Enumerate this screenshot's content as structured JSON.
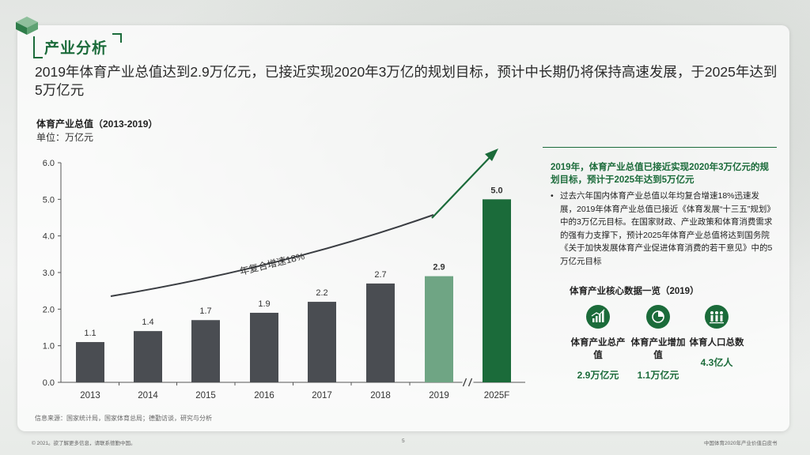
{
  "section_title": "产业分析",
  "headline": "2019年体育产业总值达到2.9万亿元，已接近实现2020年3万亿的规划目标，预计中长期仍将保持高速发展，于2025年达到5万亿元",
  "chart_data": {
    "type": "bar",
    "title": "体育产业总值（2013-2019）",
    "unit": "单位：万亿元",
    "categories": [
      "2013",
      "2014",
      "2015",
      "2016",
      "2017",
      "2018",
      "2019",
      "2025F"
    ],
    "values": [
      1.1,
      1.4,
      1.7,
      1.9,
      2.2,
      2.7,
      2.9,
      5.0
    ],
    "value_labels": [
      "1.1",
      "1.4",
      "1.7",
      "1.9",
      "2.2",
      "2.7",
      "2.9",
      "5.0"
    ],
    "ylim": [
      0,
      6
    ],
    "yticks": [
      "0.0",
      "1.0",
      "2.0",
      "3.0",
      "4.0",
      "5.0",
      "6.0"
    ],
    "bar_colors": [
      "#4a4d52",
      "#4a4d52",
      "#4a4d52",
      "#4a4d52",
      "#4a4d52",
      "#4a4d52",
      "#6fa584",
      "#1b6b3a"
    ],
    "annotation": "年复合增速18%",
    "axis_break": "//",
    "grid": false
  },
  "source": "信息来源：国家统计局，国家体育总局；德勤访谈，研究与分析",
  "panel": {
    "heading": "2019年，体育产业总值已接近实现2020年3万亿元的规划目标，预计于2025年达到5万亿元",
    "bullet": "过去六年国内体育产业总值以年均复合增速18%迅速发展，2019年体育产业总值已接近《体育发展“十三五”规划》中的3万亿元目标。在国家财政、产业政策和体育消费需求的强有力支撑下，预计2025年体育产业总值将达到国务院《关于加快发展体育产业促进体育消费的若干意见》中的5万亿元目标",
    "bullet_mark": "•",
    "core_title": "体育产业核心数据一览（2019）",
    "metrics": [
      {
        "label": "体育产业总产值",
        "value": "2.9万亿元",
        "icon": "growth-chart-icon"
      },
      {
        "label": "体育产业增加值",
        "value": "1.1万亿元",
        "icon": "pie-chart-icon"
      },
      {
        "label": "体育人口总数",
        "value": "4.3亿人",
        "icon": "people-icon"
      }
    ]
  },
  "footer": {
    "left": "© 2021。欲了解更多信息，请联系德勤中国。",
    "page": "5",
    "right": "中国体育2020年产业价值白皮书"
  },
  "colors": {
    "accent": "#1b6b3a",
    "bar_dark": "#4a4d52",
    "bar_light_green": "#6fa584"
  }
}
